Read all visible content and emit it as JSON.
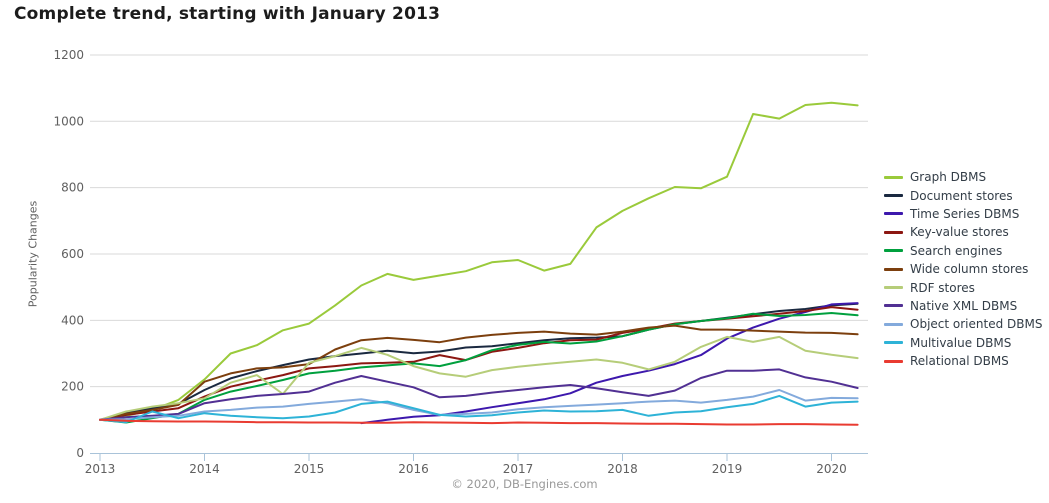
{
  "page": {
    "footer": "© 2020, DB-Engines.com"
  },
  "chart_data": {
    "type": "line",
    "title": "Complete trend, starting with January 2013",
    "y_axis_label": "Popularity Changes",
    "x_tick_labels": [
      "2013",
      "2014",
      "2015",
      "2016",
      "2017",
      "2018",
      "2019",
      "2020"
    ],
    "y_ticks": [
      0,
      200,
      400,
      600,
      800,
      1000,
      1200
    ],
    "ylim": [
      0,
      1200
    ],
    "xlim": [
      2013.0,
      2020.35
    ],
    "grid": "horizontal-only",
    "legend_position": "right",
    "style": {
      "grid_color": "#d9d9d9",
      "axis_color": "#a9c3d9",
      "tick_text_color": "#606060",
      "title_text_color": "#1c1c1c",
      "footer_text_color": "#999999"
    },
    "x": [
      2013.0,
      2013.25,
      2013.5,
      2013.75,
      2014.0,
      2014.25,
      2014.5,
      2014.75,
      2015.0,
      2015.25,
      2015.5,
      2015.75,
      2016.0,
      2016.25,
      2016.5,
      2016.75,
      2017.0,
      2017.25,
      2017.5,
      2017.75,
      2018.0,
      2018.25,
      2018.5,
      2018.75,
      2019.0,
      2019.25,
      2019.5,
      2019.75,
      2020.0,
      2020.25
    ],
    "series": [
      {
        "name": "Graph DBMS",
        "slug": "graph-dbms",
        "color": "#9aca3b",
        "values": [
          100,
          112,
          130,
          160,
          222,
          300,
          325,
          370,
          390,
          445,
          505,
          540,
          522,
          535,
          548,
          575,
          582,
          550,
          570,
          680,
          730,
          768,
          802,
          798,
          833,
          1022,
          1008,
          1049,
          1056,
          1048
        ]
      },
      {
        "name": "Document stores",
        "slug": "document-stores",
        "color": "#1a2940",
        "values": [
          100,
          120,
          135,
          148,
          190,
          225,
          247,
          265,
          282,
          292,
          300,
          308,
          301,
          306,
          318,
          322,
          331,
          340,
          346,
          348,
          352,
          372,
          388,
          398,
          408,
          418,
          428,
          434,
          445,
          450
        ]
      },
      {
        "name": "Time Series DBMS",
        "slug": "time-series-dbms",
        "color": "#3d18ad",
        "values": [
          null,
          null,
          null,
          null,
          null,
          null,
          null,
          null,
          null,
          null,
          90,
          100,
          109,
          114,
          125,
          138,
          150,
          162,
          180,
          212,
          232,
          248,
          268,
          295,
          345,
          378,
          405,
          425,
          448,
          452
        ]
      },
      {
        "name": "Key-value stores",
        "slug": "key-value-stores",
        "color": "#8c1712",
        "values": [
          100,
          115,
          125,
          135,
          170,
          200,
          218,
          235,
          255,
          262,
          270,
          272,
          275,
          295,
          280,
          305,
          317,
          331,
          340,
          342,
          362,
          375,
          390,
          398,
          405,
          412,
          420,
          428,
          440,
          432
        ]
      },
      {
        "name": "Search engines",
        "slug": "search-engines",
        "color": "#00a03e",
        "values": [
          100,
          92,
          105,
          118,
          160,
          185,
          202,
          220,
          240,
          248,
          258,
          264,
          270,
          262,
          280,
          310,
          326,
          335,
          330,
          336,
          352,
          372,
          388,
          398,
          406,
          420,
          413,
          416,
          422,
          415
        ]
      },
      {
        "name": "Wide column stores",
        "slug": "wide-column-stores",
        "color": "#7c3f0e",
        "values": [
          100,
          118,
          130,
          145,
          215,
          240,
          255,
          258,
          268,
          312,
          340,
          347,
          341,
          334,
          348,
          356,
          362,
          366,
          360,
          357,
          366,
          378,
          384,
          372,
          372,
          369,
          366,
          363,
          362,
          358
        ]
      },
      {
        "name": "RDF stores",
        "slug": "rdf-stores",
        "color": "#b6cd79",
        "values": [
          100,
          125,
          140,
          150,
          165,
          212,
          235,
          178,
          272,
          292,
          317,
          296,
          262,
          240,
          230,
          250,
          260,
          268,
          275,
          282,
          272,
          252,
          275,
          320,
          350,
          335,
          350,
          308,
          296,
          286
        ]
      },
      {
        "name": "Native XML DBMS",
        "slug": "native-xml-dbms",
        "color": "#513093",
        "values": [
          100,
          108,
          112,
          118,
          150,
          162,
          172,
          178,
          185,
          212,
          232,
          215,
          198,
          168,
          172,
          182,
          190,
          198,
          205,
          195,
          183,
          172,
          188,
          226,
          248,
          248,
          252,
          228,
          215,
          196
        ]
      },
      {
        "name": "Object oriented DBMS",
        "slug": "object-oriented-dbms",
        "color": "#83aadc",
        "values": [
          100,
          102,
          108,
          112,
          125,
          130,
          137,
          140,
          148,
          155,
          162,
          150,
          130,
          115,
          118,
          122,
          132,
          138,
          142,
          146,
          150,
          155,
          158,
          152,
          160,
          170,
          190,
          158,
          166,
          165
        ]
      },
      {
        "name": "Multivalue DBMS",
        "slug": "multivalue-dbms",
        "color": "#2eb3d7",
        "values": [
          100,
          93,
          125,
          105,
          120,
          112,
          108,
          105,
          110,
          122,
          148,
          155,
          135,
          115,
          110,
          114,
          122,
          128,
          125,
          126,
          130,
          112,
          122,
          126,
          138,
          148,
          172,
          140,
          152,
          155
        ]
      },
      {
        "name": "Relational DBMS",
        "slug": "relational-dbms",
        "color": "#e93b31",
        "values": [
          100,
          97,
          96,
          95,
          95,
          94,
          93,
          93,
          92,
          92,
          91,
          91,
          93,
          92,
          91,
          90,
          92,
          91,
          90,
          90,
          89,
          88,
          88,
          87,
          86,
          86,
          87,
          87,
          86,
          85
        ]
      }
    ]
  }
}
